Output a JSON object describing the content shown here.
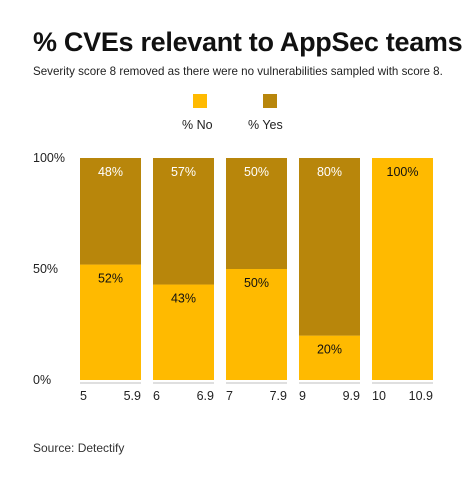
{
  "title": "% CVEs relevant to AppSec teams",
  "subtitle": "Severity score 8 removed as there were no vulnerabilities sampled with score 8.",
  "source": "Source: Detectify",
  "colors": {
    "no": "#FFBA00",
    "yes": "#B8860B"
  },
  "chart_data": {
    "type": "bar",
    "stacked": true,
    "categories": [
      {
        "start": "5",
        "end": "5.9"
      },
      {
        "start": "6",
        "end": "6.9"
      },
      {
        "start": "7",
        "end": "7.9"
      },
      {
        "start": "9",
        "end": "9.9"
      },
      {
        "start": "10",
        "end": "10.9"
      }
    ],
    "series": [
      {
        "name": "% No",
        "color": "#FFBA00",
        "values": [
          52,
          43,
          50,
          20,
          100
        ],
        "labels": [
          "52%",
          "43%",
          "50%",
          "20%",
          "100%"
        ]
      },
      {
        "name": "% Yes",
        "color": "#B8860B",
        "values": [
          48,
          57,
          50,
          80,
          0
        ],
        "labels": [
          "48%",
          "57%",
          "50%",
          "80%",
          ""
        ]
      }
    ],
    "y_ticks": [
      {
        "value": 100,
        "label": "100%"
      },
      {
        "value": 50,
        "label": "50%"
      },
      {
        "value": 0,
        "label": "0%"
      }
    ],
    "ylim": [
      0,
      100
    ],
    "legend_position": "top-center",
    "grid": false
  }
}
